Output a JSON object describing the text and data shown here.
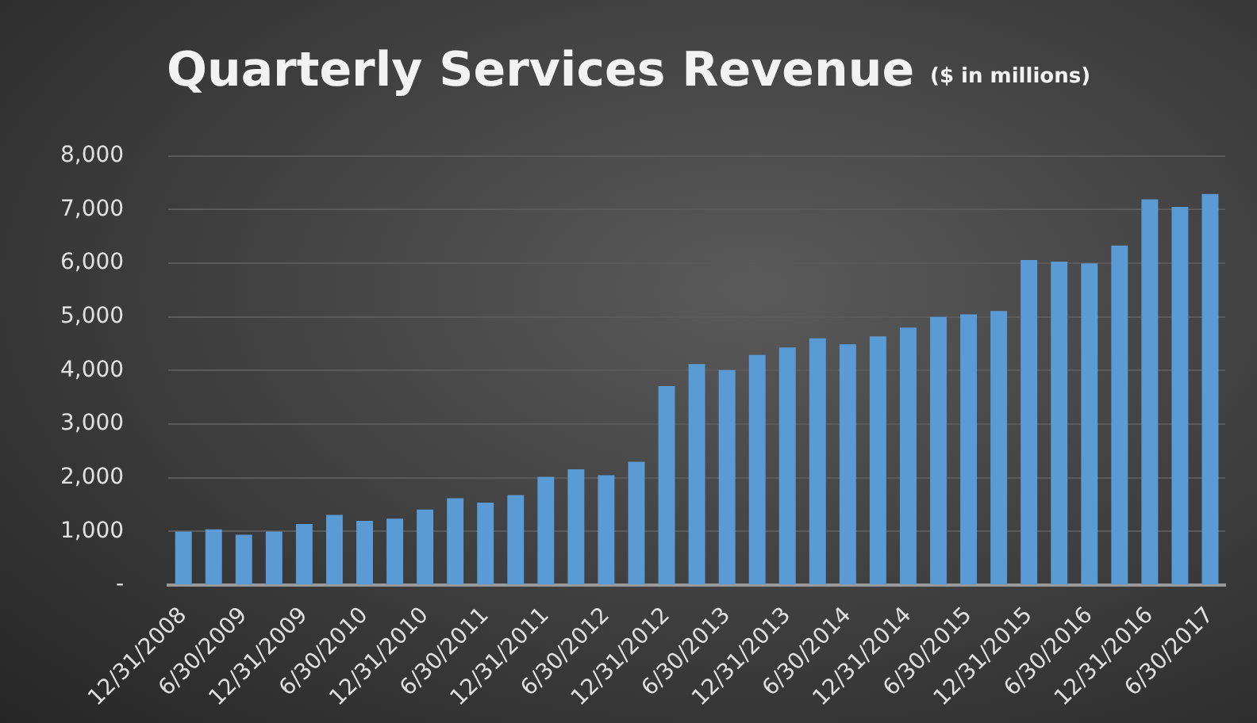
{
  "chart_data": {
    "type": "bar",
    "title": "Quarterly Services Revenue",
    "subtitle": "($ in millions)",
    "categories": [
      "12/31/2008",
      null,
      "6/30/2009",
      null,
      "12/31/2009",
      null,
      "6/30/2010",
      null,
      "12/31/2010",
      null,
      "6/30/2011",
      null,
      "12/31/2011",
      null,
      "6/30/2012",
      null,
      "12/31/2012",
      null,
      "6/30/2013",
      null,
      "12/31/2013",
      null,
      "6/30/2014",
      null,
      "12/31/2014",
      null,
      "6/30/2015",
      null,
      "12/31/2015",
      null,
      "6/30/2016",
      null,
      "12/31/2016",
      null,
      "6/30/2017"
    ],
    "values": [
      1000,
      1040,
      940,
      1000,
      1140,
      1310,
      1200,
      1240,
      1410,
      1620,
      1540,
      1680,
      2020,
      2160,
      2050,
      2300,
      3710,
      4120,
      4010,
      4290,
      4430,
      4600,
      4490,
      4640,
      4800,
      5000,
      5050,
      5110,
      6060,
      6030,
      6000,
      6330,
      7190,
      7050,
      7290
    ],
    "color": "#5b9bd5",
    "ylim": [
      0,
      8000
    ],
    "yticks": [
      {
        "value": 0,
        "label": "-"
      },
      {
        "value": 1000,
        "label": "1,000"
      },
      {
        "value": 2000,
        "label": "2,000"
      },
      {
        "value": 3000,
        "label": "3,000"
      },
      {
        "value": 4000,
        "label": "4,000"
      },
      {
        "value": 5000,
        "label": "5,000"
      },
      {
        "value": 6000,
        "label": "6,000"
      },
      {
        "value": 7000,
        "label": "7,000"
      },
      {
        "value": 8000,
        "label": "8,000"
      }
    ],
    "grid": "y"
  }
}
